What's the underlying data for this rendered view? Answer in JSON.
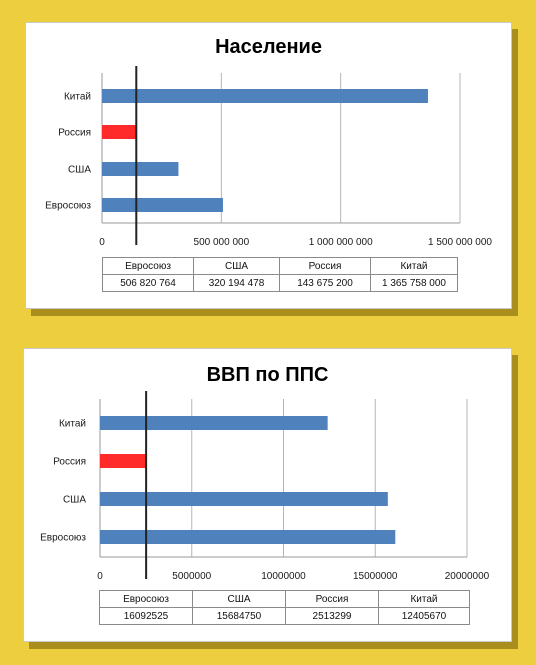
{
  "colors": {
    "bar": "#4f81bd",
    "highlight": "#ff2a2a",
    "grid": "#b5b5b5",
    "marker": "#222222"
  },
  "chart_data": [
    {
      "type": "bar",
      "orientation": "horizontal",
      "title": "Население",
      "categories": [
        "Китай",
        "Россия",
        "США",
        "Евросоюз"
      ],
      "values": [
        1365758000,
        143675200,
        320194478,
        506820764
      ],
      "highlight_category": "Россия",
      "xlim": [
        0,
        1500000000
      ],
      "xticks": [
        0,
        500000000,
        1000000000,
        1500000000
      ],
      "xtick_labels": [
        "0",
        "500 000 000",
        "1 000 000 000",
        "1 500 000 000"
      ],
      "grid": true,
      "reference_line": 143675200,
      "table": {
        "headers": [
          "Евросоюз",
          "США",
          "Россия",
          "Китай"
        ],
        "values": [
          "506 820 764",
          "320 194 478",
          "143 675 200",
          "1 365 758 000"
        ]
      }
    },
    {
      "type": "bar",
      "orientation": "horizontal",
      "title": "ВВП по ППС",
      "categories": [
        "Китай",
        "Россия",
        "США",
        "Евросоюз"
      ],
      "values": [
        12405670,
        2513299,
        15684750,
        16092525
      ],
      "highlight_category": "Россия",
      "xlim": [
        0,
        20000000
      ],
      "xticks": [
        0,
        5000000,
        10000000,
        15000000,
        20000000
      ],
      "xtick_labels": [
        "0",
        "5000000",
        "10000000",
        "15000000",
        "20000000"
      ],
      "grid": true,
      "reference_line": 2513299,
      "table": {
        "headers": [
          "Евросоюз",
          "США",
          "Россия",
          "Китай"
        ],
        "values": [
          "16092525",
          "15684750",
          "2513299",
          "12405670"
        ]
      }
    }
  ]
}
